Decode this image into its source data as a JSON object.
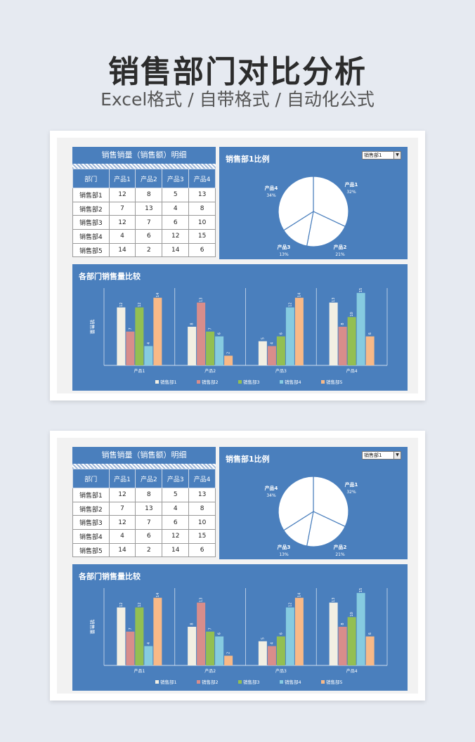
{
  "header": {
    "title": "销售部门对比分析",
    "subtitle": "Excel格式 / 自带格式 / 自动化公式"
  },
  "table": {
    "title": "销售销量（销售额）明细",
    "columns": [
      "部门",
      "产品1",
      "产品2",
      "产品3",
      "产品4"
    ],
    "rows": [
      [
        "销售部1",
        "12",
        "8",
        "5",
        "13"
      ],
      [
        "销售部2",
        "7",
        "13",
        "4",
        "8"
      ],
      [
        "销售部3",
        "12",
        "7",
        "6",
        "10"
      ],
      [
        "销售部4",
        "4",
        "6",
        "12",
        "15"
      ],
      [
        "销售部5",
        "14",
        "2",
        "14",
        "6"
      ]
    ]
  },
  "pie": {
    "title": "销售部1比例",
    "dropdown_value": "销售部1",
    "slices": [
      {
        "label": "产品1",
        "pct": "32%",
        "value": 32
      },
      {
        "label": "产品2",
        "pct": "21%",
        "value": 21
      },
      {
        "label": "产品3",
        "pct": "13%",
        "value": 13
      },
      {
        "label": "产品4",
        "pct": "34%",
        "value": 34
      }
    ]
  },
  "chart_data": {
    "type": "bar",
    "title": "各部门销售量比较",
    "ylabel": "销售量",
    "categories": [
      "产品1",
      "产品2",
      "产品3",
      "产品4"
    ],
    "series": [
      {
        "name": "销售部1",
        "values": [
          12,
          8,
          5,
          13
        ],
        "color": "#f2efe3"
      },
      {
        "name": "销售部2",
        "values": [
          7,
          13,
          4,
          8
        ],
        "color": "#d88d8b"
      },
      {
        "name": "销售部3",
        "values": [
          12,
          7,
          6,
          10
        ],
        "color": "#93bf52"
      },
      {
        "name": "销售部4",
        "values": [
          4,
          6,
          12,
          15
        ],
        "color": "#86cbe0"
      },
      {
        "name": "销售部5",
        "values": [
          14,
          2,
          14,
          6
        ],
        "color": "#f8b987"
      }
    ],
    "ylim": [
      0,
      16
    ],
    "legend": "bottom"
  }
}
